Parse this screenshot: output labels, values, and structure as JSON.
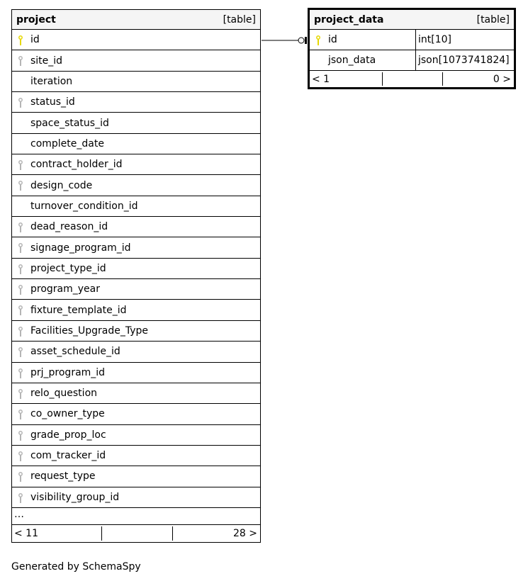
{
  "colors": {
    "primary_key": "#e6d800",
    "foreign_key": "#b5b5b5",
    "header_bg": "#f5f5f5"
  },
  "project": {
    "name": "project",
    "kind": "[table]",
    "columns": [
      {
        "name": "id",
        "key": "primary"
      },
      {
        "name": "site_id",
        "key": "foreign"
      },
      {
        "name": "iteration",
        "key": "none"
      },
      {
        "name": "status_id",
        "key": "foreign"
      },
      {
        "name": "space_status_id",
        "key": "none"
      },
      {
        "name": "complete_date",
        "key": "none"
      },
      {
        "name": "contract_holder_id",
        "key": "foreign"
      },
      {
        "name": "design_code",
        "key": "foreign"
      },
      {
        "name": "turnover_condition_id",
        "key": "none"
      },
      {
        "name": "dead_reason_id",
        "key": "foreign"
      },
      {
        "name": "signage_program_id",
        "key": "foreign"
      },
      {
        "name": "project_type_id",
        "key": "foreign"
      },
      {
        "name": "program_year",
        "key": "foreign"
      },
      {
        "name": "fixture_template_id",
        "key": "foreign"
      },
      {
        "name": "Facilities_Upgrade_Type",
        "key": "foreign"
      },
      {
        "name": "asset_schedule_id",
        "key": "foreign"
      },
      {
        "name": "prj_program_id",
        "key": "foreign"
      },
      {
        "name": "relo_question",
        "key": "foreign"
      },
      {
        "name": "co_owner_type",
        "key": "foreign"
      },
      {
        "name": "grade_prop_loc",
        "key": "foreign"
      },
      {
        "name": "com_tracker_id",
        "key": "foreign"
      },
      {
        "name": "request_type",
        "key": "foreign"
      },
      {
        "name": "visibility_group_id",
        "key": "foreign"
      }
    ],
    "more": "…",
    "parents": "< 11",
    "children": "28 >"
  },
  "project_data": {
    "name": "project_data",
    "kind": "[table]",
    "columns": [
      {
        "name": "id",
        "type": "int[10]",
        "key": "primary"
      },
      {
        "name": "json_data",
        "type": "json[1073741824]",
        "key": "none"
      }
    ],
    "parents": "< 1",
    "children": "0 >"
  },
  "footer": "Generated by SchemaSpy"
}
